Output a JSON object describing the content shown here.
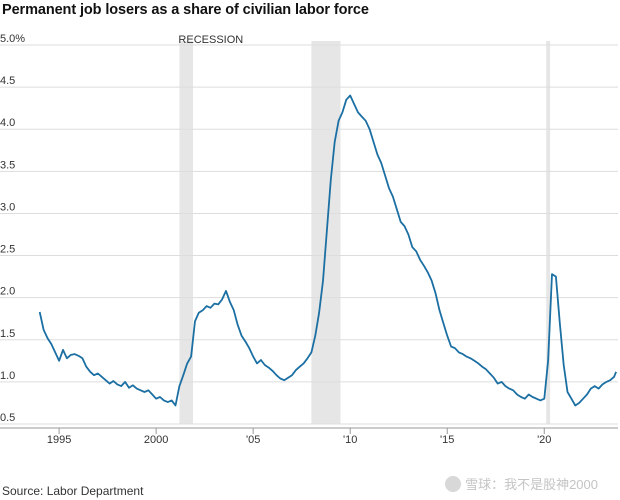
{
  "page": {
    "title": "Permanent job losers as a share of civilian labor force",
    "source": "Source: Labor Department",
    "watermark": "雪球：我不是股神2000"
  },
  "colors": {
    "line": "#1b6fa3",
    "recession": "#e6e6e6",
    "grid": "#dddddd",
    "axis": "#999999",
    "text": "#333333"
  },
  "chart_data": {
    "type": "line",
    "title": "Permanent job losers as a share of civilian labor force",
    "ylim": [
      0.5,
      5.0
    ],
    "xlim": [
      1993.5,
      2023.8
    ],
    "grid": true,
    "y_ticks": [
      {
        "value": 5.0,
        "label": "5.0%"
      },
      {
        "value": 4.5,
        "label": "4.5"
      },
      {
        "value": 4.0,
        "label": "4.0"
      },
      {
        "value": 3.5,
        "label": "3.5"
      },
      {
        "value": 3.0,
        "label": "3.0"
      },
      {
        "value": 2.5,
        "label": "2.5"
      },
      {
        "value": 2.0,
        "label": "2.0"
      },
      {
        "value": 1.5,
        "label": "1.5"
      },
      {
        "value": 1.0,
        "label": "1.0"
      },
      {
        "value": 0.5,
        "label": "0.5"
      }
    ],
    "x_ticks": [
      {
        "value": 1995,
        "label": "1995"
      },
      {
        "value": 2000,
        "label": "2000"
      },
      {
        "value": 2005,
        "label": "'05"
      },
      {
        "value": 2010,
        "label": "'10"
      },
      {
        "value": 2015,
        "label": "'15"
      },
      {
        "value": 2020,
        "label": "'20"
      }
    ],
    "recession_label": "RECESSION",
    "recessions": [
      {
        "start": 2001.2,
        "end": 2001.9
      },
      {
        "start": 2008.0,
        "end": 2009.5
      },
      {
        "start": 2020.1,
        "end": 2020.3
      }
    ],
    "series": [
      {
        "x": [
          1994.0,
          1994.2,
          1994.4,
          1994.6,
          1994.8,
          1995.0,
          1995.2,
          1995.4,
          1995.6,
          1995.8,
          1996.0,
          1996.2,
          1996.4,
          1996.6,
          1996.8,
          1997.0,
          1997.2,
          1997.4,
          1997.6,
          1997.8,
          1998.0,
          1998.2,
          1998.4,
          1998.6,
          1998.8,
          1999.0,
          1999.2,
          1999.4,
          1999.6,
          1999.8,
          2000.0,
          2000.2,
          2000.4,
          2000.6,
          2000.8,
          2001.0,
          2001.2,
          2001.4,
          2001.6,
          2001.8,
          2002.0,
          2002.2,
          2002.4,
          2002.6,
          2002.8,
          2003.0,
          2003.2,
          2003.4,
          2003.6,
          2003.8,
          2004.0,
          2004.2,
          2004.4,
          2004.6,
          2004.8,
          2005.0,
          2005.2,
          2005.4,
          2005.6,
          2005.8,
          2006.0,
          2006.2,
          2006.4,
          2006.6,
          2006.8,
          2007.0,
          2007.2,
          2007.4,
          2007.6,
          2007.8,
          2008.0,
          2008.2,
          2008.4,
          2008.6,
          2008.8,
          2009.0,
          2009.2,
          2009.4,
          2009.6,
          2009.8,
          2010.0,
          2010.2,
          2010.4,
          2010.6,
          2010.8,
          2011.0,
          2011.2,
          2011.4,
          2011.6,
          2011.8,
          2012.0,
          2012.2,
          2012.4,
          2012.6,
          2012.8,
          2013.0,
          2013.2,
          2013.4,
          2013.6,
          2013.8,
          2014.0,
          2014.2,
          2014.4,
          2014.6,
          2014.8,
          2015.0,
          2015.2,
          2015.4,
          2015.6,
          2015.8,
          2016.0,
          2016.2,
          2016.4,
          2016.6,
          2016.8,
          2017.0,
          2017.2,
          2017.4,
          2017.6,
          2017.8,
          2018.0,
          2018.2,
          2018.4,
          2018.6,
          2018.8,
          2019.0,
          2019.2,
          2019.4,
          2019.6,
          2019.8,
          2020.0,
          2020.2,
          2020.4,
          2020.6,
          2020.8,
          2021.0,
          2021.2,
          2021.4,
          2021.6,
          2021.8,
          2022.0,
          2022.2,
          2022.4,
          2022.6,
          2022.8,
          2023.0,
          2023.2,
          2023.4,
          2023.6,
          2023.7
        ],
        "y": [
          1.83,
          1.62,
          1.52,
          1.45,
          1.35,
          1.25,
          1.38,
          1.28,
          1.32,
          1.33,
          1.31,
          1.28,
          1.18,
          1.12,
          1.08,
          1.1,
          1.06,
          1.02,
          0.98,
          1.01,
          0.97,
          0.95,
          1.0,
          0.93,
          0.96,
          0.92,
          0.9,
          0.88,
          0.9,
          0.85,
          0.8,
          0.82,
          0.78,
          0.76,
          0.78,
          0.72,
          0.95,
          1.08,
          1.22,
          1.3,
          1.72,
          1.82,
          1.85,
          1.9,
          1.88,
          1.93,
          1.92,
          1.98,
          2.08,
          1.95,
          1.85,
          1.68,
          1.55,
          1.48,
          1.4,
          1.3,
          1.22,
          1.26,
          1.2,
          1.17,
          1.13,
          1.08,
          1.04,
          1.02,
          1.05,
          1.08,
          1.14,
          1.18,
          1.22,
          1.28,
          1.35,
          1.55,
          1.82,
          2.2,
          2.8,
          3.4,
          3.85,
          4.1,
          4.2,
          4.35,
          4.4,
          4.3,
          4.2,
          4.15,
          4.1,
          4.0,
          3.85,
          3.7,
          3.6,
          3.45,
          3.3,
          3.2,
          3.05,
          2.9,
          2.85,
          2.75,
          2.6,
          2.55,
          2.45,
          2.38,
          2.3,
          2.2,
          2.05,
          1.85,
          1.7,
          1.55,
          1.42,
          1.4,
          1.35,
          1.33,
          1.3,
          1.28,
          1.25,
          1.22,
          1.18,
          1.15,
          1.1,
          1.05,
          0.98,
          1.0,
          0.95,
          0.92,
          0.9,
          0.85,
          0.82,
          0.8,
          0.85,
          0.82,
          0.8,
          0.78,
          0.8,
          1.25,
          2.28,
          2.25,
          1.7,
          1.2,
          0.88,
          0.8,
          0.72,
          0.75,
          0.8,
          0.85,
          0.92,
          0.95,
          0.92,
          0.97,
          1.0,
          1.02,
          1.06,
          1.12
        ]
      }
    ]
  }
}
